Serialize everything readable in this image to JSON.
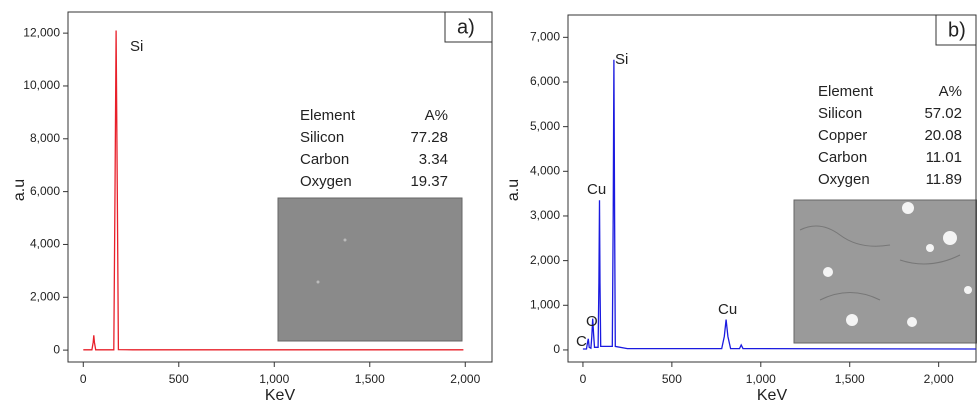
{
  "chart_data": [
    {
      "type": "line",
      "color": "#e8202a",
      "ylabel": "a.u",
      "xlabel": "KeV",
      "panel": "a)",
      "x": [
        0,
        45,
        52,
        55,
        58,
        65,
        160,
        166,
        172,
        178,
        184,
        260,
        1990
      ],
      "values": [
        10,
        10,
        300,
        560,
        300,
        10,
        10,
        6000,
        12100,
        6000,
        20,
        10,
        10
      ],
      "xlim": [
        -80,
        2140
      ],
      "ylim": [
        -450,
        12800
      ],
      "xticks": [
        0,
        500,
        {
          "value": 1000,
          "label": "1,000"
        },
        {
          "value": 1500,
          "label": "1,500"
        },
        {
          "value": 2000,
          "label": "2,000"
        }
      ],
      "yticks": [
        0,
        {
          "value": 2000,
          "label": "2,000"
        },
        {
          "value": 4000,
          "label": "4,000"
        },
        {
          "value": 6000,
          "label": "6,000"
        },
        {
          "value": 8000,
          "label": "8,000"
        },
        {
          "value": 10000,
          "label": "10,000"
        },
        {
          "value": 12000,
          "label": "12,000"
        }
      ],
      "annotations": [
        "Si"
      ],
      "composition": {
        "header": [
          "Element",
          "A%"
        ],
        "rows": [
          [
            "Silicon",
            "77.28"
          ],
          [
            "Carbon",
            "3.34"
          ],
          [
            "Oxygen",
            "19.37"
          ]
        ]
      }
    },
    {
      "type": "line",
      "color": "#1a1ae0",
      "ylabel": "a.u",
      "xlabel": "KeV",
      "panel": "b)",
      "x": [
        0,
        20,
        25,
        30,
        35,
        45,
        50,
        55,
        60,
        65,
        85,
        90,
        93,
        96,
        100,
        165,
        170,
        174,
        178,
        182,
        250,
        780,
        795,
        805,
        815,
        830,
        880,
        890,
        900,
        2210
      ],
      "values": [
        20,
        20,
        150,
        250,
        60,
        40,
        300,
        700,
        350,
        60,
        60,
        1500,
        3350,
        1500,
        80,
        80,
        3000,
        6500,
        3000,
        80,
        30,
        30,
        300,
        680,
        300,
        30,
        30,
        110,
        30,
        20
      ],
      "xlim": [
        -84,
        2210
      ],
      "ylim": [
        -270,
        7500
      ],
      "xticks": [
        0,
        500,
        {
          "value": 1000,
          "label": "1,000"
        },
        {
          "value": 1500,
          "label": "1,500"
        },
        {
          "value": 2000,
          "label": "2,000"
        }
      ],
      "yticks": [
        0,
        {
          "value": 1000,
          "label": "1,000"
        },
        {
          "value": 2000,
          "label": "2,000"
        },
        {
          "value": 3000,
          "label": "3,000"
        },
        {
          "value": 4000,
          "label": "4,000"
        },
        {
          "value": 5000,
          "label": "5,000"
        },
        {
          "value": 6000,
          "label": "6,000"
        },
        {
          "value": 7000,
          "label": "7,000"
        }
      ],
      "annotations": [
        "Si",
        "Cu",
        "O",
        "C",
        "Cu"
      ],
      "composition": {
        "header": [
          "Element",
          "A%"
        ],
        "rows": [
          [
            "Silicon",
            "57.02"
          ],
          [
            "Copper",
            "20.08"
          ],
          [
            "Carbon",
            "11.01"
          ],
          [
            "Oxygen",
            "11.89"
          ]
        ]
      }
    }
  ]
}
